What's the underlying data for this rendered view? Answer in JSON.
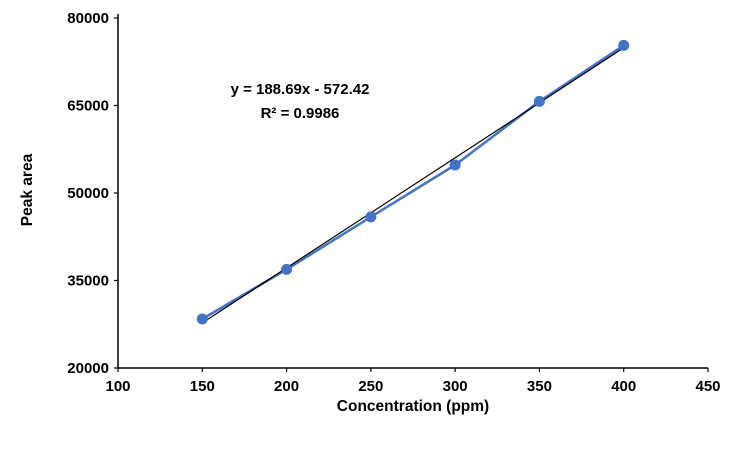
{
  "chart_data": {
    "type": "scatter",
    "title": "",
    "xlabel": "Concentration (ppm)",
    "ylabel": "Peak area",
    "x": [
      150,
      200,
      250,
      300,
      350,
      400
    ],
    "y": [
      28400,
      36900,
      45900,
      54800,
      65700,
      75300
    ],
    "xlim": [
      100,
      450
    ],
    "ylim": [
      20000,
      80000
    ],
    "x_ticks": [
      100,
      150,
      200,
      250,
      300,
      350,
      400,
      450
    ],
    "y_ticks": [
      20000,
      35000,
      50000,
      65000,
      80000
    ],
    "grid": false,
    "legend": false,
    "trendline": {
      "slope": 188.69,
      "intercept": -572.42,
      "x_start": 150,
      "x_end": 400,
      "equation_label": "y = 188.69x - 572.42",
      "r2_label": "R² = 0.9986"
    },
    "colors": {
      "series": "#4472C4",
      "trendline": "#000000",
      "axis": "#000000",
      "text": "#000000"
    }
  }
}
